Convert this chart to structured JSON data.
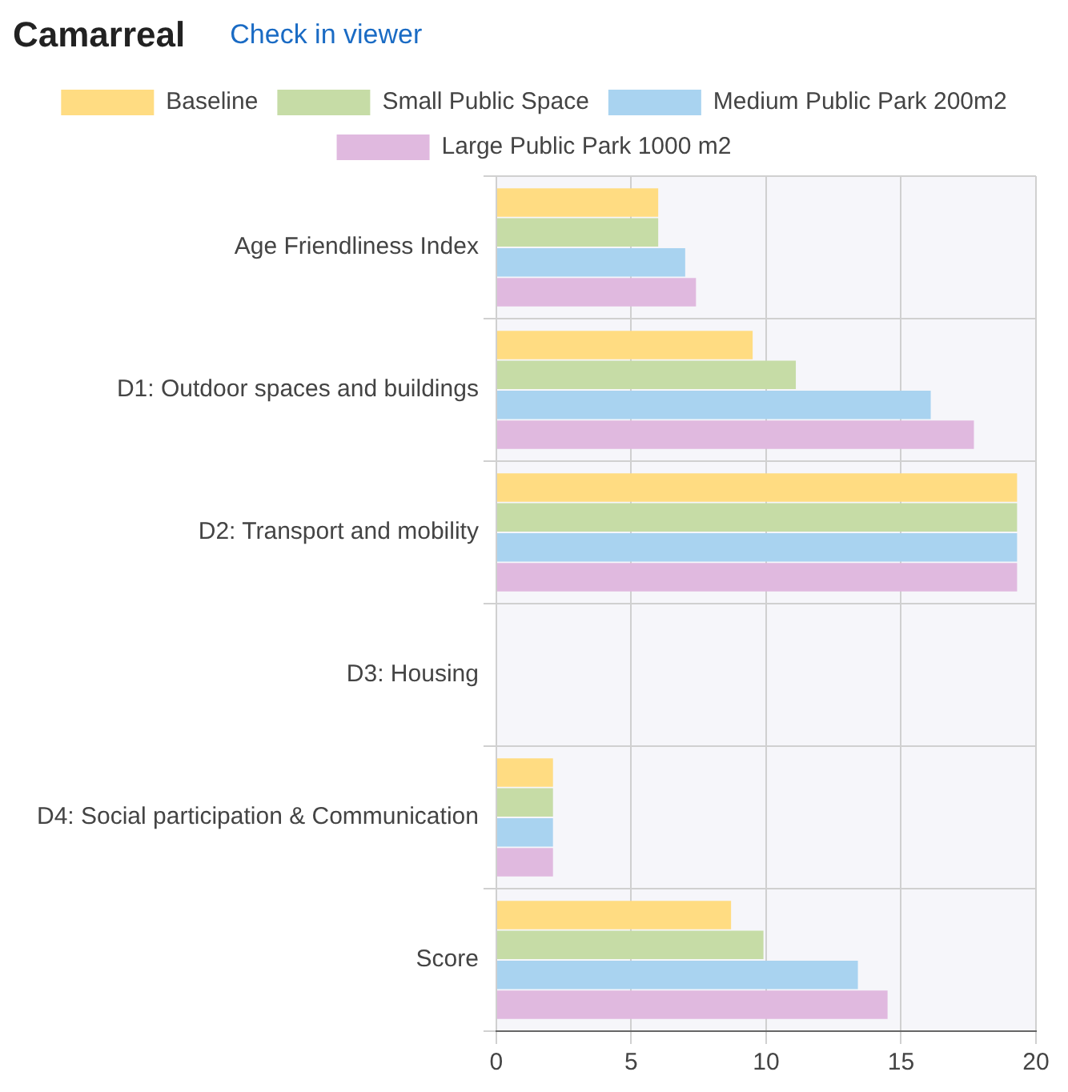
{
  "chart_data": {
    "type": "bar",
    "orientation": "horizontal",
    "title": "Camarreal",
    "subtitle": "Check in viewer",
    "categories": [
      "Age Friendliness Index",
      "D1: Outdoor spaces and buildings",
      "D2: Transport and mobility",
      "D3: Housing",
      "D4: Social participation & Communication",
      "Score"
    ],
    "series": [
      {
        "name": "Baseline",
        "color": "#ffdc82",
        "values": [
          6.0,
          9.5,
          19.3,
          null,
          2.1,
          8.7
        ]
      },
      {
        "name": "Small Public Space",
        "color": "#c6dca6",
        "values": [
          6.0,
          11.1,
          19.3,
          null,
          2.1,
          9.9
        ]
      },
      {
        "name": "Medium Public Park 200m2",
        "color": "#a9d3f0",
        "values": [
          7.0,
          16.1,
          19.3,
          null,
          2.1,
          13.4
        ]
      },
      {
        "name": "Large Public Park 1000 m2",
        "color": "#e0b9df",
        "values": [
          7.4,
          17.7,
          19.3,
          null,
          2.1,
          14.5
        ]
      }
    ],
    "xlim": [
      0,
      20
    ],
    "xticks": [
      0,
      5,
      10,
      15,
      20
    ],
    "grid": true,
    "legend": "top"
  }
}
